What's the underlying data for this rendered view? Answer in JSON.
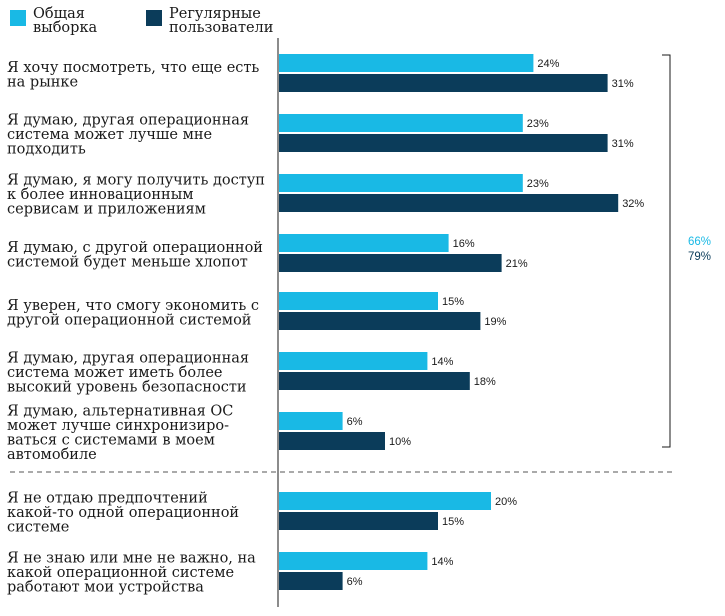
{
  "colors": {
    "general": "#19b9e5",
    "regular": "#0b3c5a",
    "axis": "#1a1a1a",
    "divider": "#555555",
    "text": "#1a1a1a"
  },
  "legend": [
    {
      "key": "general",
      "label": [
        "Общая",
        "выборка"
      ]
    },
    {
      "key": "regular",
      "label": [
        "Регулярные",
        "пользователи"
      ]
    }
  ],
  "bracket_totals": {
    "general": "66%",
    "regular": "79%"
  },
  "chart_data": {
    "type": "bar",
    "orientation": "horizontal",
    "xlim": [
      0,
      35
    ],
    "series": [
      {
        "name": "Общая выборка",
        "key": "general"
      },
      {
        "name": "Регулярные пользователи",
        "key": "regular"
      }
    ],
    "rows": [
      {
        "label": [
          "Я хочу посмотреть, что еще есть",
          "на рынке"
        ],
        "general": 24,
        "regular": 31,
        "general_label": "24%",
        "regular_label": "31%"
      },
      {
        "label": [
          "Я думаю, другая операционная",
          "система может лучше мне",
          "подходить"
        ],
        "general": 23,
        "regular": 31,
        "general_label": "23%",
        "regular_label": "31%"
      },
      {
        "label": [
          "Я думаю, я могу получить доступ",
          "к более инновационным",
          "сервисам и приложениям"
        ],
        "general": 23,
        "regular": 32,
        "general_label": "23%",
        "regular_label": "32%"
      },
      {
        "label": [
          "Я думаю, с другой операционной",
          "системой будет меньше хлопот"
        ],
        "general": 16,
        "regular": 21,
        "general_label": "16%",
        "regular_label": "21%"
      },
      {
        "label": [
          "Я уверен, что смогу экономить с",
          "другой операционной системой"
        ],
        "general": 15,
        "regular": 19,
        "general_label": "15%",
        "regular_label": "19%"
      },
      {
        "label": [
          "Я думаю, другая операционная",
          "система может иметь более",
          "высокий уровень безопасности"
        ],
        "general": 14,
        "regular": 18,
        "general_label": "14%",
        "regular_label": "18%"
      },
      {
        "label": [
          "Я думаю, альтернативная ОС",
          "может лучше синхронизиро-",
          "ваться с системами в моем",
          "автомобиле"
        ],
        "general": 6,
        "regular": 10,
        "general_label": "6%",
        "regular_label": "10%"
      },
      {
        "label": [
          "Я не отдаю предпочтений",
          "какой-то одной операционной",
          "системе"
        ],
        "general": 20,
        "regular": 15,
        "general_label": "20%",
        "regular_label": "15%"
      },
      {
        "label": [
          "Я не знаю или мне не важно, на",
          "какой операционной системе",
          "работают мои устройства"
        ],
        "general": 14,
        "regular": 6,
        "general_label": "14%",
        "regular_label": "6%"
      }
    ]
  }
}
